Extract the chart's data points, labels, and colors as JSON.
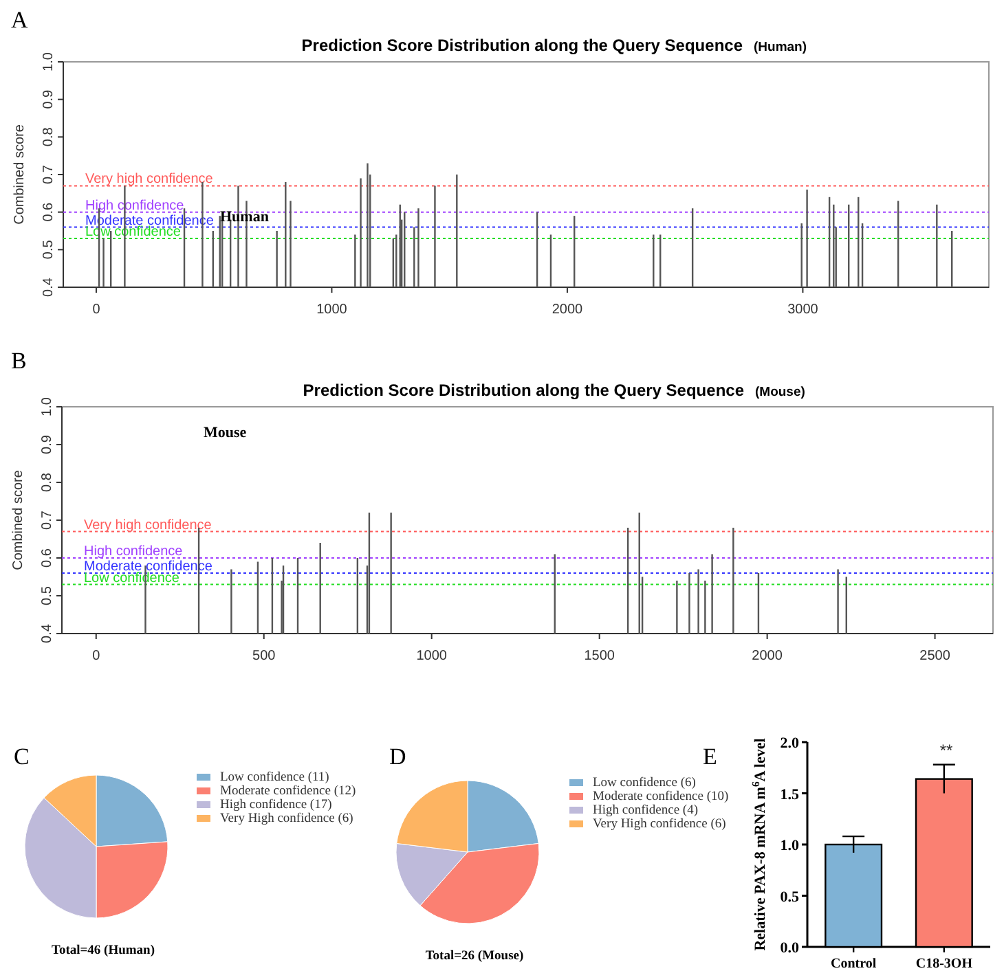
{
  "chart_data": [
    {
      "type": "bar",
      "title": "Prediction Score Distribution along the Query Sequence",
      "subtitle": "(Human)",
      "ylabel": "Combined score",
      "annotations": [
        "A",
        "Human"
      ],
      "color": "#555555",
      "x": [
        12,
        31,
        62,
        121,
        374,
        451,
        496,
        525,
        535,
        570,
        603,
        638,
        767,
        804,
        825,
        1099,
        1123,
        1152,
        1163,
        1261,
        1274,
        1290,
        1297,
        1309,
        1350,
        1368,
        1438,
        1531,
        1872,
        1930,
        2030,
        2366,
        2395,
        2532,
        2995,
        3018,
        3113,
        3131,
        3141,
        3195,
        3236,
        3253,
        3405,
        3569,
        3633
      ],
      "values": [
        0.61,
        0.53,
        0.55,
        0.67,
        0.61,
        0.68,
        0.55,
        0.59,
        0.59,
        0.58,
        0.67,
        0.63,
        0.55,
        0.68,
        0.63,
        0.54,
        0.69,
        0.73,
        0.7,
        0.53,
        0.54,
        0.62,
        0.58,
        0.6,
        0.56,
        0.61,
        0.67,
        0.7,
        0.6,
        0.54,
        0.59,
        0.54,
        0.54,
        0.61,
        0.57,
        0.66,
        0.64,
        0.62,
        0.56,
        0.62,
        0.64,
        0.57,
        0.63,
        0.62,
        0.55
      ],
      "xlim": [
        -140,
        3790
      ],
      "xticks": [
        0,
        1000,
        2000,
        3000
      ],
      "ylim": [
        0.4,
        1.0
      ],
      "yticks": [
        0.4,
        0.5,
        0.6,
        0.7,
        0.8,
        0.9,
        {
          "value": 1,
          "label": "1.0"
        }
      ],
      "ref_lines": [
        {
          "axis": "y",
          "value": 0.67,
          "label": "Very high confidence",
          "color": "#ff5a5a",
          "line_style": "dotted"
        },
        {
          "axis": "y",
          "value": 0.6,
          "label": "High confidence",
          "color": "#a040ff",
          "line_style": "dotted"
        },
        {
          "axis": "y",
          "value": 0.56,
          "label": "Moderate confidence",
          "color": "#3333ff",
          "line_style": "dotted"
        },
        {
          "axis": "y",
          "value": 0.53,
          "label": "Low confidence",
          "color": "#22dd22",
          "line_style": "dotted"
        }
      ]
    },
    {
      "type": "bar",
      "title": "Prediction Score Distribution along the Query Sequence",
      "subtitle": "(Mouse)",
      "ylabel": "Combined score",
      "annotations": [
        "B",
        "Mouse"
      ],
      "color": "#555555",
      "x": [
        147,
        306,
        403,
        482,
        525,
        553,
        558,
        601,
        668,
        779,
        808,
        814,
        879,
        1367,
        1585,
        1619,
        1628,
        1731,
        1768,
        1795,
        1815,
        1836,
        1899,
        1974,
        2211,
        2236
      ],
      "values": [
        0.58,
        0.68,
        0.57,
        0.59,
        0.6,
        0.54,
        0.58,
        0.6,
        0.64,
        0.6,
        0.58,
        0.72,
        0.72,
        0.61,
        0.68,
        0.72,
        0.55,
        0.54,
        0.56,
        0.57,
        0.54,
        0.61,
        0.68,
        0.56,
        0.57,
        0.55
      ],
      "xlim": [
        -102,
        2673
      ],
      "xticks": [
        0,
        500,
        1000,
        1500,
        2000,
        2500
      ],
      "ylim": [
        0.4,
        1.0
      ],
      "yticks": [
        0.4,
        0.5,
        0.6,
        0.7,
        0.8,
        0.9,
        {
          "value": 1,
          "label": "1.0"
        }
      ],
      "ref_lines": [
        {
          "axis": "y",
          "value": 0.67,
          "label": "Very high confidence",
          "color": "#ff5a5a",
          "line_style": "dotted"
        },
        {
          "axis": "y",
          "value": 0.6,
          "label": "High confidence",
          "color": "#a040ff",
          "line_style": "dotted"
        },
        {
          "axis": "y",
          "value": 0.56,
          "label": "Moderate confidence",
          "color": "#3333ff",
          "line_style": "dotted"
        },
        {
          "axis": "y",
          "value": 0.53,
          "label": "Low confidence",
          "color": "#22dd22",
          "line_style": "dotted"
        }
      ]
    },
    {
      "type": "pie",
      "title": "Total=46 (Human)",
      "annotations": [
        "C"
      ],
      "legend": "right",
      "categories": [
        "Low confidence (11)",
        "Moderate confidence (12)",
        "High confidence (17)",
        "Very High confidence (6)"
      ],
      "values": [
        11,
        12,
        17,
        6
      ],
      "colors": [
        "#80b1d3",
        "#fb8072",
        "#bebada",
        "#fdb462"
      ]
    },
    {
      "type": "pie",
      "title": "Total=26 (Mouse)",
      "annotations": [
        "D"
      ],
      "legend": "right",
      "categories": [
        "Low confidence (6)",
        "Moderate confidence (10)",
        "High confidence (4)",
        "Very High confidence (6)"
      ],
      "values": [
        6,
        10,
        4,
        6
      ],
      "colors": [
        "#80b1d3",
        "#fb8072",
        "#bebada",
        "#fdb462"
      ]
    },
    {
      "type": "bar",
      "ylabel": "Relative PAX-8 mRNA m$^{6}$A level",
      "annotations": [
        "E",
        "**"
      ],
      "categories": [
        "Control",
        "C18-3OH"
      ],
      "values": [
        1.0,
        1.64
      ],
      "errors": [
        0.08,
        0.14
      ],
      "colors": [
        "#7fb2d5",
        "#fa8072"
      ],
      "ylim": [
        0,
        2
      ],
      "yticks": [
        {
          "value": 0,
          "label": "0.0"
        },
        0.5,
        {
          "value": 1,
          "label": "1.0"
        },
        1.5,
        {
          "value": 2,
          "label": "2.0"
        }
      ]
    }
  ]
}
